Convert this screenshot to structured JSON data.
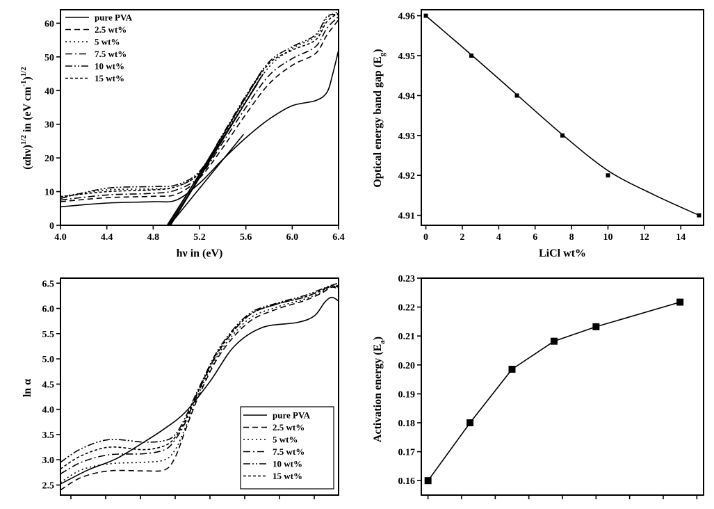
{
  "chart_data": [
    {
      "id": "tauc",
      "type": "line",
      "xlabel": "hν in (eV)",
      "ylabel_main": "(αhν)",
      "ylabel_sup1": "1/2",
      "ylabel_mid": " in (eV cm",
      "ylabel_sup2": "-1",
      "ylabel_close": ")",
      "ylabel_sup3": "1/2",
      "xlim": [
        4.0,
        6.4
      ],
      "ylim": [
        0,
        64
      ],
      "xticks": [
        "4.0",
        "4.4",
        "4.8",
        "5.2",
        "5.6",
        "6.0",
        "6.4"
      ],
      "xtick_values": [
        4.0,
        4.4,
        4.8,
        5.2,
        5.6,
        6.0,
        6.4
      ],
      "yticks": [
        "0",
        "10",
        "20",
        "30",
        "40",
        "50",
        "60"
      ],
      "ytick_values": [
        0,
        10,
        20,
        30,
        40,
        50,
        60
      ],
      "legend": "top-left",
      "series": [
        {
          "name": "pure PVA",
          "dash": "solid",
          "x": [
            4.0,
            4.4,
            4.8,
            5.0,
            5.2,
            5.4,
            5.6,
            5.8,
            6.0,
            6.2,
            6.3,
            6.35,
            6.4
          ],
          "y": [
            5.5,
            6.6,
            7.0,
            7.5,
            12.5,
            19.5,
            26.0,
            31.5,
            35.5,
            37.0,
            39.5,
            45.0,
            52.0
          ]
        },
        {
          "name": "2.5 wt%",
          "dash": "8,5",
          "x": [
            4.0,
            4.4,
            4.8,
            5.0,
            5.2,
            5.4,
            5.6,
            5.8,
            6.0,
            6.2,
            6.3,
            6.4
          ],
          "y": [
            7.0,
            8.2,
            8.6,
            9.2,
            14.0,
            23.0,
            33.0,
            42.0,
            47.5,
            51.0,
            56.5,
            61.0
          ]
        },
        {
          "name": "5 wt%",
          "dash": "2,4",
          "x": [
            4.0,
            4.4,
            4.8,
            5.0,
            5.2,
            5.4,
            5.6,
            5.8,
            6.0,
            6.2,
            6.3,
            6.4
          ],
          "y": [
            8.5,
            10.5,
            10.8,
            11.5,
            15.5,
            26.0,
            37.0,
            47.0,
            52.5,
            56.0,
            61.5,
            63.5
          ]
        },
        {
          "name": "7.5 wt%",
          "dash": "10,4,2,4",
          "x": [
            4.0,
            4.4,
            4.8,
            5.0,
            5.2,
            5.4,
            5.6,
            5.8,
            6.0,
            6.2,
            6.3,
            6.4
          ],
          "y": [
            7.5,
            9.0,
            9.5,
            10.5,
            14.5,
            24.5,
            35.0,
            44.5,
            49.5,
            53.0,
            58.5,
            62.0
          ]
        },
        {
          "name": "10 wt%",
          "dash": "10,3,2,3,2,3",
          "x": [
            4.0,
            4.4,
            4.8,
            5.0,
            5.2,
            5.4,
            5.6,
            5.8,
            6.0,
            6.2,
            6.3,
            6.4
          ],
          "y": [
            8.0,
            11.0,
            11.5,
            12.0,
            16.0,
            27.0,
            38.5,
            48.5,
            53.0,
            56.5,
            62.0,
            62.5
          ]
        },
        {
          "name": "15 wt%",
          "dash": "4,3",
          "x": [
            4.0,
            4.4,
            4.8,
            5.0,
            5.2,
            5.4,
            5.6,
            5.8,
            6.0,
            6.2,
            6.3,
            6.4
          ],
          "y": [
            8.5,
            10.0,
            10.5,
            11.5,
            15.5,
            26.5,
            38.0,
            48.0,
            52.0,
            55.0,
            60.5,
            63.0
          ]
        }
      ],
      "fit_lines": [
        {
          "x": [
            4.94,
            5.58
          ],
          "y": [
            0,
            27
          ]
        },
        {
          "x": [
            4.92,
            5.7
          ],
          "y": [
            0,
            42
          ]
        },
        {
          "x": [
            4.93,
            5.74
          ],
          "y": [
            0,
            46
          ]
        },
        {
          "x": [
            4.95,
            5.73
          ],
          "y": [
            0,
            44
          ]
        },
        {
          "x": [
            4.94,
            5.75
          ],
          "y": [
            0,
            45
          ]
        }
      ]
    },
    {
      "id": "bandgap",
      "type": "line",
      "xlabel": "LiCl  wt%",
      "ylabel_main": "Optical energy band gap (E",
      "ylabel_sub": "g",
      "ylabel_close": ")",
      "xlim": [
        0,
        15
      ],
      "ylim": [
        4.9075,
        4.9615
      ],
      "xticks": [
        "0",
        "2",
        "4",
        "6",
        "8",
        "10",
        "12",
        "14"
      ],
      "xtick_values": [
        0,
        2,
        4,
        6,
        8,
        10,
        12,
        14
      ],
      "yticks": [
        "4.91",
        "4.92",
        "4.93",
        "4.94",
        "4.95",
        "4.96"
      ],
      "ytick_values": [
        4.91,
        4.92,
        4.93,
        4.94,
        4.95,
        4.96
      ],
      "points": {
        "x": [
          0,
          2.5,
          5,
          7.5,
          10,
          15
        ],
        "y": [
          4.96,
          4.95,
          4.94,
          4.93,
          4.92,
          4.91
        ]
      },
      "curve": {
        "x": [
          0,
          2.5,
          5,
          7.5,
          10,
          12.5,
          15
        ],
        "y": [
          4.96,
          4.9502,
          4.9402,
          4.9302,
          4.9212,
          4.9152,
          4.91
        ]
      }
    },
    {
      "id": "lnalpha",
      "type": "line",
      "xlabel": "",
      "ylabel_main": "ln α",
      "xlim": [
        0,
        8
      ],
      "ylim": [
        2.3,
        6.6
      ],
      "yticks": [
        "2.5",
        "3.0",
        "3.5",
        "4.0",
        "4.5",
        "5.0",
        "5.5",
        "6.0",
        "6.5"
      ],
      "ytick_values": [
        2.5,
        3.0,
        3.5,
        4.0,
        4.5,
        5.0,
        5.5,
        6.0,
        6.5
      ],
      "xtick_values": [
        0.3,
        1.3,
        2.3,
        3.3,
        4.3,
        5.3,
        6.3,
        7.3
      ],
      "legend": "bottom-right",
      "series": [
        {
          "name": "pure PVA",
          "dash": "solid",
          "x": [
            0,
            0.8,
            1.6,
            2.4,
            3.0,
            3.6,
            4.3,
            5.0,
            5.8,
            6.8,
            7.3,
            7.6,
            7.8,
            8.0
          ],
          "y": [
            2.52,
            2.8,
            3.02,
            3.35,
            3.62,
            3.95,
            4.55,
            5.25,
            5.62,
            5.72,
            5.85,
            6.12,
            6.22,
            6.15
          ]
        },
        {
          "name": "2.5 wt%",
          "dash": "8,5",
          "x": [
            0,
            0.6,
            1.4,
            2.4,
            3.0,
            3.3,
            3.6,
            4.0,
            4.6,
            5.4,
            6.2,
            7.0,
            7.5,
            7.8,
            8.0
          ],
          "y": [
            2.4,
            2.65,
            2.78,
            2.78,
            2.8,
            3.05,
            3.6,
            4.3,
            5.1,
            5.72,
            5.98,
            6.15,
            6.3,
            6.42,
            6.38
          ]
        },
        {
          "name": "5 wt%",
          "dash": "2,4",
          "x": [
            0,
            0.6,
            1.4,
            2.4,
            3.0,
            3.3,
            3.6,
            4.0,
            4.6,
            5.4,
            6.2,
            7.0,
            7.5,
            7.8,
            8.0
          ],
          "y": [
            2.55,
            2.8,
            2.92,
            2.95,
            3.0,
            3.2,
            3.65,
            4.35,
            5.15,
            5.78,
            6.02,
            6.18,
            6.32,
            6.44,
            6.4
          ]
        },
        {
          "name": "7.5 wt%",
          "dash": "10,4,2,4",
          "x": [
            0,
            0.6,
            1.4,
            2.4,
            3.0,
            3.3,
            3.6,
            4.0,
            4.6,
            5.4,
            6.2,
            7.0,
            7.5,
            7.8,
            8.0
          ],
          "y": [
            2.72,
            2.95,
            3.1,
            3.12,
            3.2,
            3.4,
            3.75,
            4.4,
            5.2,
            5.85,
            6.08,
            6.22,
            6.36,
            6.45,
            6.42
          ]
        },
        {
          "name": "10 wt%",
          "dash": "10,3,2,3,2,3",
          "x": [
            0,
            0.6,
            1.4,
            2.4,
            3.0,
            3.3,
            3.6,
            4.0,
            4.6,
            5.4,
            6.2,
            7.0,
            7.5,
            7.8,
            8.0
          ],
          "y": [
            2.95,
            3.22,
            3.4,
            3.35,
            3.38,
            3.5,
            3.85,
            4.45,
            5.25,
            5.88,
            6.1,
            6.25,
            6.38,
            6.46,
            6.5
          ]
        },
        {
          "name": "15 wt%",
          "dash": "4,3",
          "x": [
            0,
            0.6,
            1.4,
            2.4,
            3.0,
            3.3,
            3.6,
            4.0,
            4.6,
            5.4,
            6.2,
            7.0,
            7.5,
            7.8,
            8.0
          ],
          "y": [
            2.82,
            3.08,
            3.25,
            3.2,
            3.28,
            3.45,
            3.8,
            4.42,
            5.22,
            5.85,
            6.08,
            6.22,
            6.35,
            6.44,
            6.45
          ]
        }
      ]
    },
    {
      "id": "activation",
      "type": "line",
      "xlabel": "",
      "ylabel_main": "Activation energy (E",
      "ylabel_sub": "a",
      "ylabel_close": ")",
      "xlim": [
        0,
        16
      ],
      "ylim": [
        0.155,
        0.23
      ],
      "yticks": [
        "0.16",
        "0.17",
        "0.18",
        "0.19",
        "0.20",
        "0.21",
        "0.22",
        "0.23"
      ],
      "ytick_values": [
        0.16,
        0.17,
        0.18,
        0.19,
        0.2,
        0.21,
        0.22,
        0.23
      ],
      "xtick_values": [
        0,
        2,
        4,
        6,
        8,
        10,
        12,
        14,
        16
      ],
      "points": {
        "x": [
          0,
          2.5,
          5,
          7.5,
          10,
          15
        ],
        "y": [
          0.16,
          0.18,
          0.1985,
          0.2082,
          0.2132,
          0.2217
        ]
      }
    }
  ]
}
